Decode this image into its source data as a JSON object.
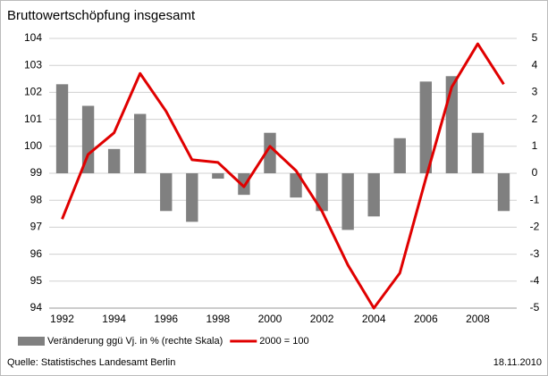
{
  "chart_data": {
    "type": "combo",
    "title": "Bruttowertschöpfung insgesamt",
    "categories": [
      "1992",
      null,
      "1994",
      null,
      "1996",
      null,
      "1998",
      null,
      "2000",
      null,
      "2002",
      null,
      "2004",
      null,
      "2006",
      null,
      "2008",
      null
    ],
    "series": [
      {
        "name": "Veränderung ggü Vj. in % (rechte Skala)",
        "type": "bar",
        "axis": "y2",
        "color": "#808080",
        "values": [
          3.3,
          2.5,
          0.9,
          2.2,
          -1.4,
          -1.8,
          -0.2,
          -0.8,
          1.5,
          -0.9,
          -1.4,
          -2.1,
          -1.6,
          1.3,
          3.4,
          3.6,
          1.5,
          -1.4
        ]
      },
      {
        "name": "2000 = 100",
        "type": "line",
        "axis": "y",
        "color": "#e00000",
        "values": [
          97.3,
          99.7,
          100.5,
          102.7,
          101.3,
          99.5,
          99.4,
          98.5,
          100,
          99.1,
          97.6,
          95.6,
          94.0,
          95.3,
          98.8,
          102.2,
          103.8,
          102.3
        ]
      }
    ],
    "ylim": [
      94,
      104
    ],
    "yticks": [
      94,
      95,
      96,
      97,
      98,
      99,
      100,
      101,
      102,
      103,
      104
    ],
    "y2lim": [
      -5,
      5
    ],
    "y2ticks": [
      -5,
      -4,
      -3,
      -2,
      -1,
      0,
      1,
      2,
      3,
      4,
      5
    ],
    "grid": true,
    "source": "Quelle: Statistisches Landesamt Berlin",
    "date": "18.11.2010"
  }
}
